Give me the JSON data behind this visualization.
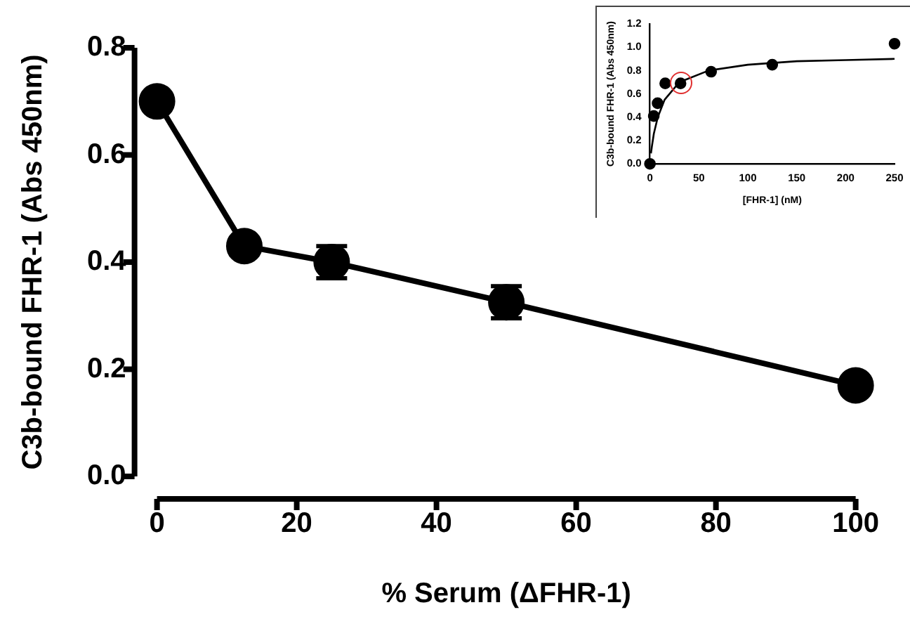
{
  "chart_data": [
    {
      "type": "line",
      "xlabel": "% Serum (ΔFHR-1)",
      "ylabel": "C3b-bound FHR-1 (Abs 450nm)",
      "x": [
        0,
        12.5,
        25,
        50,
        100
      ],
      "series": [
        {
          "color": "#000000",
          "values": [
            0.7,
            0.43,
            0.4,
            0.325,
            0.17
          ],
          "errors": [
            null,
            null,
            0.03,
            0.03,
            null
          ]
        }
      ],
      "xlim": [
        0,
        100
      ],
      "xticks": [
        0,
        20,
        40,
        60,
        80,
        100
      ],
      "ylim": [
        0,
        0.8
      ],
      "yticks": [
        {
          "value": 0,
          "label": "0.0"
        },
        0.2,
        0.4,
        0.6,
        0.8
      ],
      "grid": false,
      "legend": false,
      "marker": "circle",
      "line_style": "solid"
    },
    {
      "type": "scatter",
      "xlabel": "[FHR-1] (nM)",
      "ylabel": "C3b-bound FHR-1 (Abs 450nm)",
      "series": [
        {
          "color": "#000000",
          "x": [
            0,
            3.9,
            7.8,
            15.6,
            31.25,
            62.5,
            125,
            250
          ],
          "values": [
            0,
            0.41,
            0.52,
            0.69,
            0.69,
            0.79,
            0.85,
            1.03
          ]
        },
        {
          "type": "line",
          "color": "#000000",
          "marker": "none",
          "x": [
            1,
            2,
            4,
            8,
            15,
            30,
            60,
            100,
            150,
            200,
            250
          ],
          "values": [
            0.09,
            0.15,
            0.26,
            0.4,
            0.55,
            0.7,
            0.8,
            0.85,
            0.88,
            0.89,
            0.9
          ]
        }
      ],
      "xlim": [
        0,
        250
      ],
      "xticks": [
        0,
        50,
        100,
        150,
        200,
        250
      ],
      "ylim": [
        0,
        1.2
      ],
      "yticks": [
        {
          "value": 0,
          "label": "0.0"
        },
        0.2,
        0.4,
        0.6,
        0.8,
        {
          "value": 1,
          "label": "1.0"
        },
        {
          "value": 1.2,
          "label": "1.2"
        }
      ],
      "grid": false,
      "legend": false,
      "marker": "circle"
    }
  ]
}
